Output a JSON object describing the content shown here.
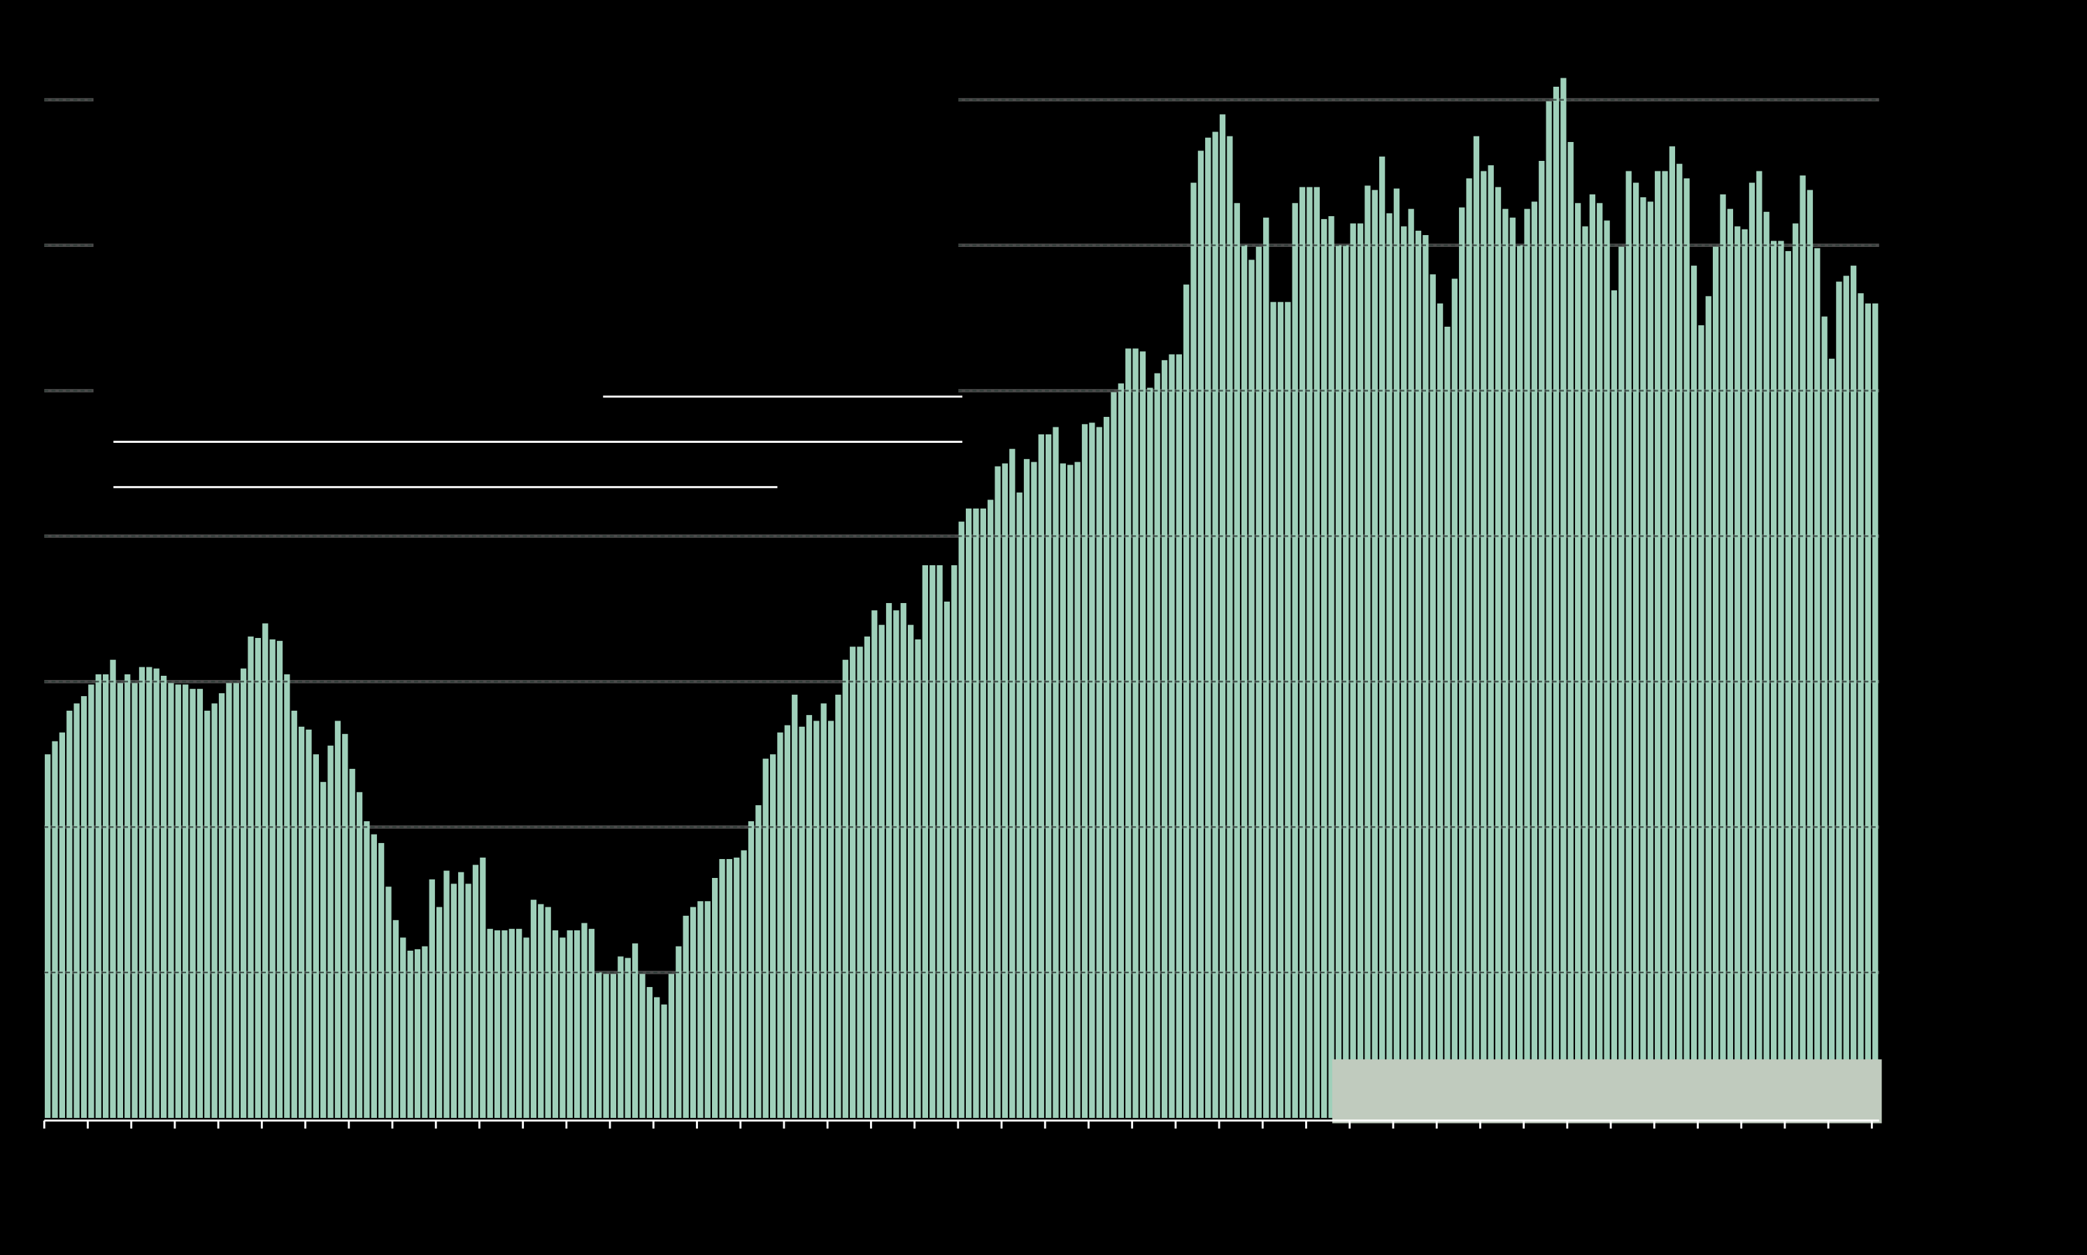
{
  "chart_data": {
    "type": "bar",
    "color": "#9fd0ba",
    "grid": true,
    "ylim": [
      0,
      7
    ],
    "yticks": [
      1,
      2,
      3,
      4,
      5,
      6,
      7
    ],
    "values": [
      2.5,
      2.59,
      2.65,
      2.8,
      2.85,
      2.9,
      2.98,
      3.05,
      3.05,
      3.15,
      2.99,
      3.05,
      2.99,
      3.1,
      3.1,
      3.09,
      3.04,
      2.99,
      2.98,
      2.98,
      2.95,
      2.95,
      2.8,
      2.85,
      2.92,
      2.99,
      2.99,
      3.09,
      3.31,
      3.3,
      3.4,
      3.29,
      3.28,
      3.05,
      2.8,
      2.69,
      2.67,
      2.5,
      2.31,
      2.56,
      2.73,
      2.64,
      2.4,
      2.24,
      2.04,
      1.95,
      1.89,
      1.59,
      1.36,
      1.24,
      1.15,
      1.16,
      1.18,
      1.64,
      1.45,
      1.7,
      1.61,
      1.69,
      1.61,
      1.74,
      1.79,
      1.3,
      1.29,
      1.29,
      1.3,
      1.3,
      1.24,
      1.5,
      1.47,
      1.45,
      1.29,
      1.24,
      1.29,
      1.29,
      1.34,
      1.3,
      1.0,
      0.99,
      0.99,
      1.11,
      1.1,
      1.2,
      0.99,
      0.9,
      0.83,
      0.78,
      0.99,
      1.18,
      1.39,
      1.45,
      1.49,
      1.49,
      1.65,
      1.78,
      1.78,
      1.79,
      1.84,
      2.04,
      2.15,
      2.47,
      2.5,
      2.65,
      2.7,
      2.91,
      2.69,
      2.77,
      2.73,
      2.85,
      2.73,
      2.91,
      3.15,
      3.24,
      3.24,
      3.31,
      3.49,
      3.39,
      3.54,
      3.49,
      3.54,
      3.39,
      3.29,
      3.8,
      3.8,
      3.8,
      3.55,
      3.8,
      4.1,
      4.19,
      4.19,
      4.19,
      4.25,
      4.48,
      4.5,
      4.6,
      4.3,
      4.53,
      4.51,
      4.7,
      4.7,
      4.75,
      4.5,
      4.49,
      4.51,
      4.77,
      4.78,
      4.75,
      4.82,
      4.99,
      5.05,
      5.29,
      5.29,
      5.27,
      5.02,
      5.12,
      5.21,
      5.25,
      5.25,
      5.73,
      6.43,
      6.65,
      6.74,
      6.78,
      6.9,
      6.75,
      6.29,
      6.0,
      5.9,
      5.99,
      6.19,
      5.61,
      5.61,
      5.61,
      6.29,
      6.4,
      6.4,
      6.4,
      6.18,
      6.2,
      6.0,
      6.0,
      6.15,
      6.15,
      6.41,
      6.38,
      6.61,
      6.22,
      6.39,
      6.13,
      6.25,
      6.1,
      6.07,
      5.8,
      5.6,
      5.44,
      5.77,
      6.26,
      6.46,
      6.75,
      6.51,
      6.55,
      6.4,
      6.25,
      6.19,
      6.0,
      6.25,
      6.3,
      6.58,
      6.99,
      7.09,
      7.15,
      6.71,
      6.29,
      6.13,
      6.35,
      6.29,
      6.17,
      5.69,
      5.99,
      6.51,
      6.43,
      6.33,
      6.3,
      6.51,
      6.51,
      6.68,
      6.56,
      6.46,
      5.86,
      5.45,
      5.65,
      5.99,
      6.35,
      6.25,
      6.13,
      6.11,
      6.43,
      6.51,
      6.23,
      6.03,
      6.03,
      5.96,
      6.15,
      6.48,
      6.38,
      5.98,
      5.51,
      5.22,
      5.75,
      5.79,
      5.86,
      5.67,
      5.6,
      5.6
    ]
  }
}
